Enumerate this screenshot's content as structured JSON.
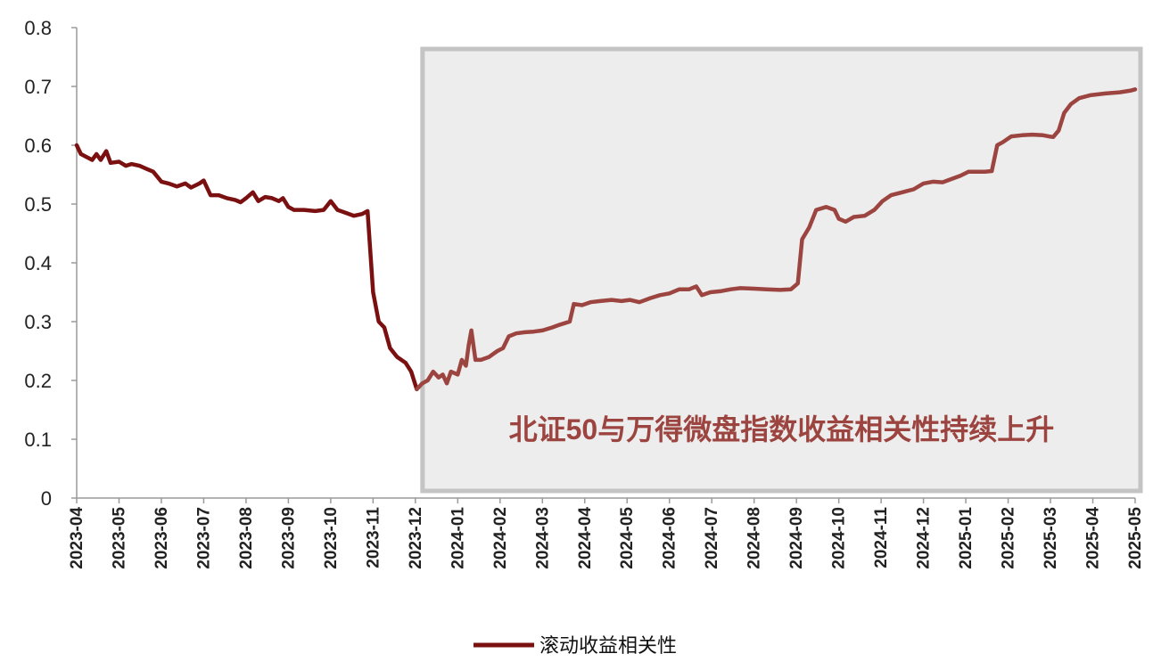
{
  "chart_data": {
    "type": "line",
    "title": "",
    "xlabel": "",
    "ylabel": "",
    "ylim": [
      0,
      0.8
    ],
    "yticks": [
      0,
      0.1,
      0.2,
      0.3,
      0.4,
      0.5,
      0.6,
      0.7,
      0.8
    ],
    "ytick_labels": [
      "0",
      "0.1",
      "0.2",
      "0.3",
      "0.4",
      "0.5",
      "0.6",
      "0.7",
      "0.8"
    ],
    "xtick_labels": [
      "2023-04",
      "2023-05",
      "2023-06",
      "2023-07",
      "2023-08",
      "2023-09",
      "2023-10",
      "2023-11",
      "2023-12",
      "2024-01",
      "2024-02",
      "2024-03",
      "2024-04",
      "2024-05",
      "2024-06",
      "2024-07",
      "2024-08",
      "2024-09",
      "2024-10",
      "2024-11",
      "2024-12",
      "2025-01",
      "2025-02",
      "2025-03",
      "2025-04",
      "2025-05"
    ],
    "grid": false,
    "legend_position": "bottom",
    "highlight_range": [
      "2023-12",
      "2025-05"
    ],
    "annotation": "北证50与万得微盘指数收益相关性持续上升",
    "series": [
      {
        "name": "滚动收益相关性",
        "color": "#7b1010",
        "highlight_color": "#9c4540",
        "points": [
          [
            "2023-04-01",
            0.6
          ],
          [
            "2023-04-04",
            0.585
          ],
          [
            "2023-04-08",
            0.58
          ],
          [
            "2023-04-12",
            0.575
          ],
          [
            "2023-04-15",
            0.585
          ],
          [
            "2023-04-18",
            0.575
          ],
          [
            "2023-04-22",
            0.59
          ],
          [
            "2023-04-25",
            0.57
          ],
          [
            "2023-05-01",
            0.572
          ],
          [
            "2023-05-06",
            0.565
          ],
          [
            "2023-05-10",
            0.568
          ],
          [
            "2023-05-16",
            0.565
          ],
          [
            "2023-05-21",
            0.56
          ],
          [
            "2023-05-26",
            0.555
          ],
          [
            "2023-06-01",
            0.538
          ],
          [
            "2023-06-06",
            0.535
          ],
          [
            "2023-06-12",
            0.53
          ],
          [
            "2023-06-18",
            0.535
          ],
          [
            "2023-06-22",
            0.528
          ],
          [
            "2023-06-28",
            0.535
          ],
          [
            "2023-07-01",
            0.54
          ],
          [
            "2023-07-06",
            0.515
          ],
          [
            "2023-07-12",
            0.515
          ],
          [
            "2023-07-18",
            0.51
          ],
          [
            "2023-07-24",
            0.507
          ],
          [
            "2023-07-28",
            0.503
          ],
          [
            "2023-08-01",
            0.51
          ],
          [
            "2023-08-06",
            0.52
          ],
          [
            "2023-08-10",
            0.505
          ],
          [
            "2023-08-15",
            0.512
          ],
          [
            "2023-08-20",
            0.51
          ],
          [
            "2023-08-25",
            0.505
          ],
          [
            "2023-08-28",
            0.51
          ],
          [
            "2023-09-01",
            0.495
          ],
          [
            "2023-09-05",
            0.49
          ],
          [
            "2023-09-12",
            0.49
          ],
          [
            "2023-09-20",
            0.488
          ],
          [
            "2023-09-26",
            0.49
          ],
          [
            "2023-10-01",
            0.505
          ],
          [
            "2023-10-06",
            0.49
          ],
          [
            "2023-10-12",
            0.485
          ],
          [
            "2023-10-18",
            0.48
          ],
          [
            "2023-10-24",
            0.483
          ],
          [
            "2023-10-28",
            0.488
          ],
          [
            "2023-11-01",
            0.35
          ],
          [
            "2023-11-05",
            0.3
          ],
          [
            "2023-11-09",
            0.29
          ],
          [
            "2023-11-13",
            0.255
          ],
          [
            "2023-11-18",
            0.24
          ],
          [
            "2023-11-24",
            0.23
          ],
          [
            "2023-11-28",
            0.215
          ],
          [
            "2023-12-02",
            0.185
          ],
          [
            "2023-12-06",
            0.195
          ],
          [
            "2023-12-10",
            0.2
          ],
          [
            "2023-12-14",
            0.215
          ],
          [
            "2023-12-18",
            0.205
          ],
          [
            "2023-12-21",
            0.21
          ],
          [
            "2023-12-24",
            0.195
          ],
          [
            "2023-12-27",
            0.215
          ],
          [
            "2024-01-01",
            0.21
          ],
          [
            "2024-01-04",
            0.235
          ],
          [
            "2024-01-07",
            0.225
          ],
          [
            "2024-01-09",
            0.26
          ],
          [
            "2024-01-11",
            0.285
          ],
          [
            "2024-01-14",
            0.235
          ],
          [
            "2024-01-18",
            0.235
          ],
          [
            "2024-01-24",
            0.24
          ],
          [
            "2024-01-30",
            0.25
          ],
          [
            "2024-02-03",
            0.255
          ],
          [
            "2024-02-07",
            0.275
          ],
          [
            "2024-02-12",
            0.28
          ],
          [
            "2024-02-18",
            0.282
          ],
          [
            "2024-02-24",
            0.283
          ],
          [
            "2024-03-01",
            0.285
          ],
          [
            "2024-03-08",
            0.29
          ],
          [
            "2024-03-14",
            0.295
          ],
          [
            "2024-03-21",
            0.3
          ],
          [
            "2024-03-24",
            0.33
          ],
          [
            "2024-03-30",
            0.328
          ],
          [
            "2024-04-05",
            0.333
          ],
          [
            "2024-04-12",
            0.335
          ],
          [
            "2024-04-20",
            0.337
          ],
          [
            "2024-04-27",
            0.335
          ],
          [
            "2024-05-03",
            0.337
          ],
          [
            "2024-05-10",
            0.333
          ],
          [
            "2024-05-18",
            0.34
          ],
          [
            "2024-05-25",
            0.345
          ],
          [
            "2024-06-01",
            0.348
          ],
          [
            "2024-06-08",
            0.355
          ],
          [
            "2024-06-15",
            0.355
          ],
          [
            "2024-06-20",
            0.36
          ],
          [
            "2024-06-24",
            0.345
          ],
          [
            "2024-06-30",
            0.35
          ],
          [
            "2024-07-08",
            0.352
          ],
          [
            "2024-07-15",
            0.355
          ],
          [
            "2024-07-22",
            0.357
          ],
          [
            "2024-08-01",
            0.356
          ],
          [
            "2024-08-10",
            0.355
          ],
          [
            "2024-08-20",
            0.354
          ],
          [
            "2024-08-28",
            0.355
          ],
          [
            "2024-09-02",
            0.365
          ],
          [
            "2024-09-05",
            0.44
          ],
          [
            "2024-09-10",
            0.46
          ],
          [
            "2024-09-15",
            0.49
          ],
          [
            "2024-09-22",
            0.495
          ],
          [
            "2024-09-28",
            0.49
          ],
          [
            "2024-10-01",
            0.475
          ],
          [
            "2024-10-06",
            0.47
          ],
          [
            "2024-10-12",
            0.478
          ],
          [
            "2024-10-20",
            0.48
          ],
          [
            "2024-10-27",
            0.49
          ],
          [
            "2024-11-02",
            0.505
          ],
          [
            "2024-11-08",
            0.515
          ],
          [
            "2024-11-16",
            0.52
          ],
          [
            "2024-11-24",
            0.525
          ],
          [
            "2024-12-01",
            0.535
          ],
          [
            "2024-12-08",
            0.538
          ],
          [
            "2024-12-15",
            0.537
          ],
          [
            "2024-12-22",
            0.543
          ],
          [
            "2024-12-28",
            0.548
          ],
          [
            "2025-01-03",
            0.555
          ],
          [
            "2025-01-10",
            0.555
          ],
          [
            "2025-01-15",
            0.555
          ],
          [
            "2025-01-20",
            0.556
          ],
          [
            "2025-01-24",
            0.6
          ],
          [
            "2025-01-28",
            0.605
          ],
          [
            "2025-02-03",
            0.615
          ],
          [
            "2025-02-10",
            0.617
          ],
          [
            "2025-02-17",
            0.618
          ],
          [
            "2025-02-24",
            0.617
          ],
          [
            "2025-02-28",
            0.615
          ],
          [
            "2025-03-03",
            0.614
          ],
          [
            "2025-03-07",
            0.625
          ],
          [
            "2025-03-11",
            0.655
          ],
          [
            "2025-03-16",
            0.67
          ],
          [
            "2025-03-22",
            0.68
          ],
          [
            "2025-03-30",
            0.685
          ],
          [
            "2025-04-10",
            0.688
          ],
          [
            "2025-04-20",
            0.69
          ],
          [
            "2025-04-28",
            0.693
          ],
          [
            "2025-05-01",
            0.695
          ]
        ]
      }
    ]
  }
}
